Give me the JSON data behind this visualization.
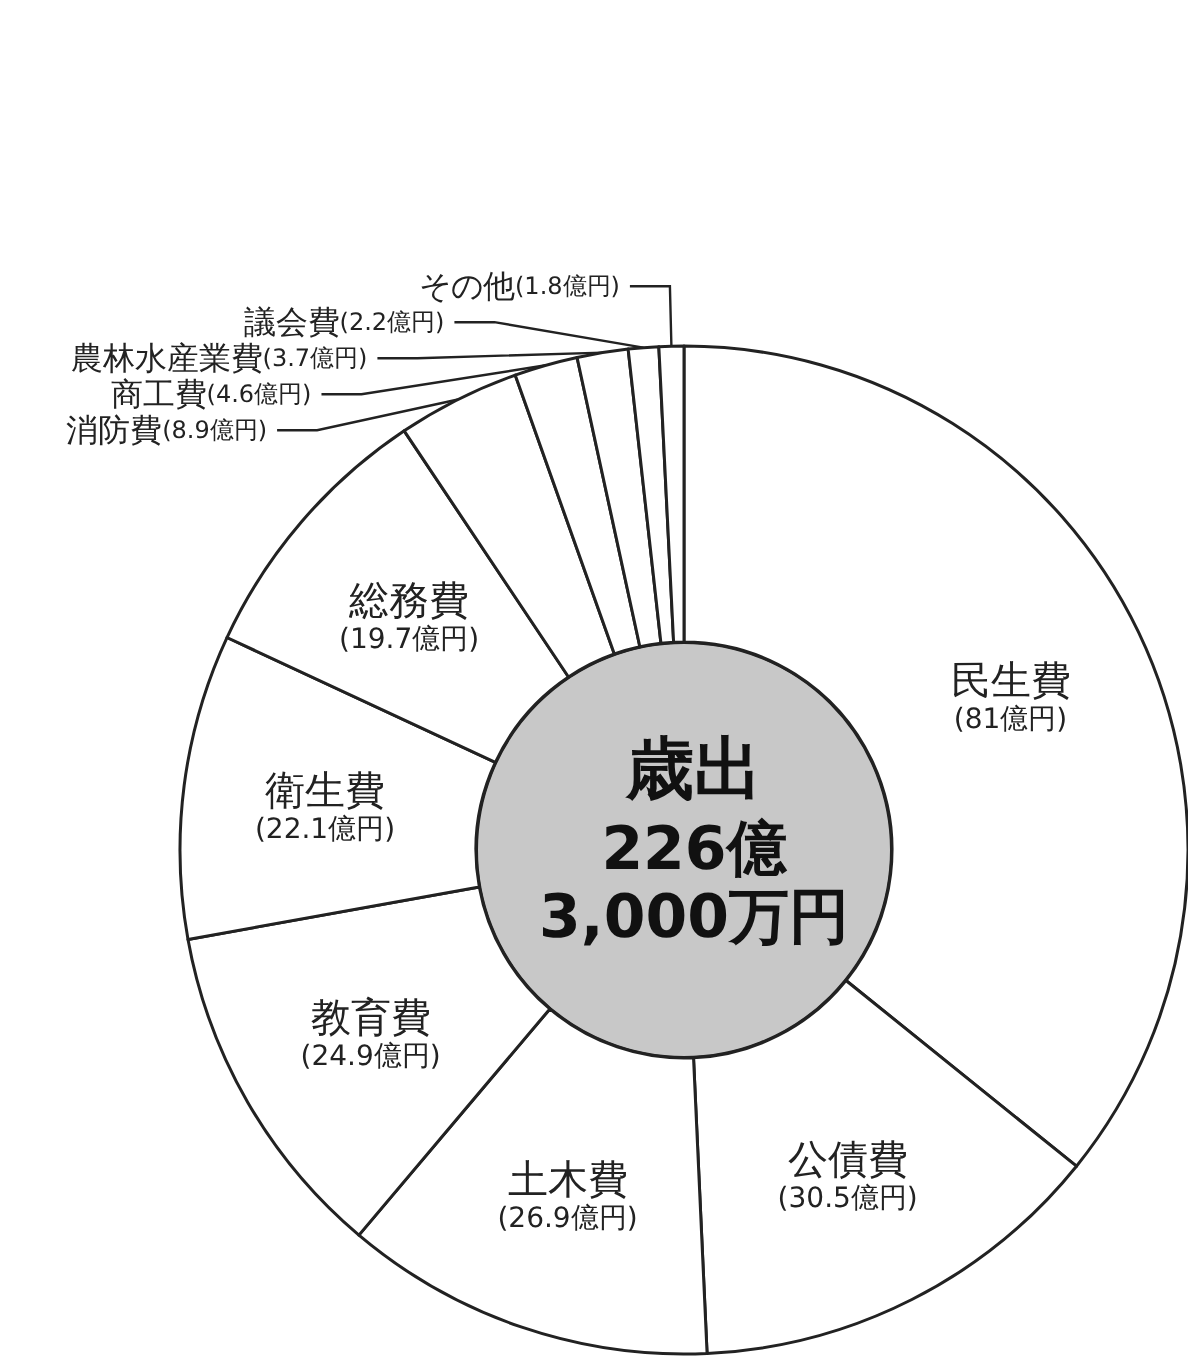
{
  "chart_data": {
    "type": "donut",
    "title": "歳出",
    "subtitle": "226億\n3,000万円",
    "categories": [
      "民生費",
      "公債費",
      "土木費",
      "教育費",
      "衛生費",
      "総務費",
      "消防費",
      "商工費",
      "農林水産業費",
      "議会費",
      "その他"
    ],
    "values": [
      81,
      30.5,
      26.9,
      24.9,
      22.1,
      19.7,
      8.9,
      4.6,
      3.7,
      2.2,
      1.8
    ],
    "value_labels": [
      "(81億円)",
      "(30.5億円)",
      "(26.9億円)",
      "(24.9億円)",
      "(22.1億円)",
      "(19.7億円)",
      "(8.9億円)",
      "(4.6億円)",
      "(3.7億円)",
      "(2.2億円)",
      "(1.8億円)"
    ],
    "colors": [
      "#ffffff",
      "#ffffff",
      "#ffffff",
      "#ffffff",
      "#ffffff",
      "#ffffff",
      "#ffffff",
      "#ffffff",
      "#ffffff",
      "#ffffff",
      "#ffffff"
    ],
    "legend": false
  }
}
